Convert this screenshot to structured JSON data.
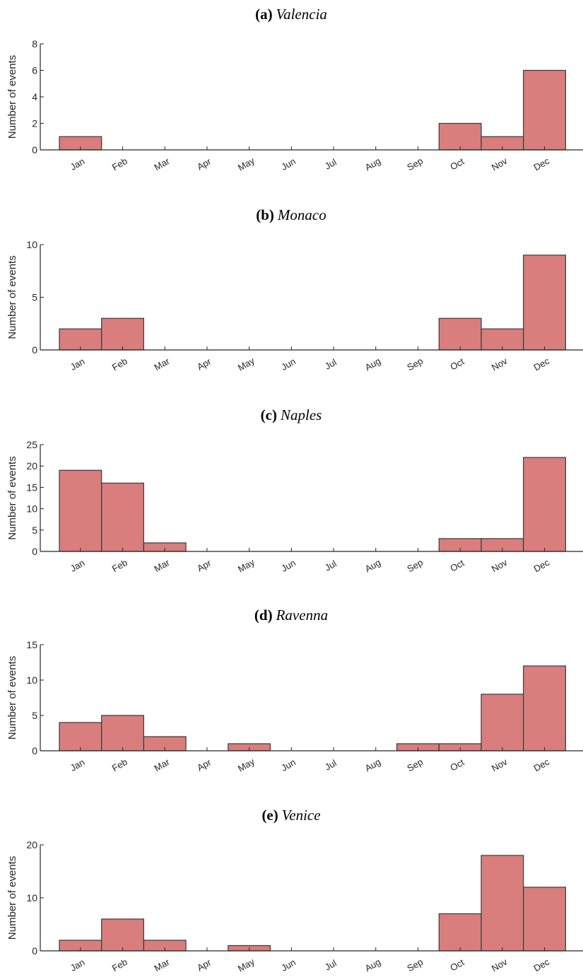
{
  "chart_data": [
    {
      "type": "bar",
      "title_letter": "(a)",
      "title_city": "Valencia",
      "ylabel": "Number of events",
      "categories": [
        "Jan",
        "Feb",
        "Mar",
        "Apr",
        "May",
        "Jun",
        "Jul",
        "Aug",
        "Sep",
        "Oct",
        "Nov",
        "Dec"
      ],
      "values": [
        1,
        0,
        0,
        0,
        0,
        0,
        0,
        0,
        0,
        2,
        1,
        6
      ],
      "ylim": [
        0,
        8
      ],
      "yticks": [
        0,
        2,
        4,
        6,
        8
      ],
      "bar_color": "#d97d7d"
    },
    {
      "type": "bar",
      "title_letter": "(b)",
      "title_city": "Monaco",
      "ylabel": "Number of events",
      "categories": [
        "Jan",
        "Feb",
        "Mar",
        "Apr",
        "May",
        "Jun",
        "Jul",
        "Aug",
        "Sep",
        "Oct",
        "Nov",
        "Dec"
      ],
      "values": [
        2,
        3,
        0,
        0,
        0,
        0,
        0,
        0,
        0,
        3,
        2,
        9
      ],
      "ylim": [
        0,
        10
      ],
      "yticks": [
        0,
        5,
        10
      ],
      "bar_color": "#d97d7d"
    },
    {
      "type": "bar",
      "title_letter": "(c)",
      "title_city": "Naples",
      "ylabel": "Number of events",
      "categories": [
        "Jan",
        "Feb",
        "Mar",
        "Apr",
        "May",
        "Jun",
        "Jul",
        "Aug",
        "Sep",
        "Oct",
        "Nov",
        "Dec"
      ],
      "values": [
        19,
        16,
        2,
        0,
        0,
        0,
        0,
        0,
        0,
        3,
        3,
        22
      ],
      "ylim": [
        0,
        25
      ],
      "yticks": [
        0,
        5,
        10,
        15,
        20,
        25
      ],
      "bar_color": "#d97d7d"
    },
    {
      "type": "bar",
      "title_letter": "(d)",
      "title_city": "Ravenna",
      "ylabel": "Number of events",
      "categories": [
        "Jan",
        "Feb",
        "Mar",
        "Apr",
        "May",
        "Jun",
        "Jul",
        "Aug",
        "Sep",
        "Oct",
        "Nov",
        "Dec"
      ],
      "values": [
        4,
        5,
        2,
        0,
        1,
        0,
        0,
        0,
        1,
        1,
        8,
        12
      ],
      "ylim": [
        0,
        15
      ],
      "yticks": [
        0,
        5,
        10,
        15
      ],
      "bar_color": "#d97d7d"
    },
    {
      "type": "bar",
      "title_letter": "(e)",
      "title_city": "Venice",
      "ylabel": "Number of events",
      "categories": [
        "Jan",
        "Feb",
        "Mar",
        "Apr",
        "May",
        "Jun",
        "Jul",
        "Aug",
        "Sep",
        "Oct",
        "Nov",
        "Dec"
      ],
      "values": [
        2,
        6,
        2,
        0,
        1,
        0,
        0,
        0,
        0,
        7,
        18,
        12
      ],
      "ylim": [
        0,
        20
      ],
      "yticks": [
        0,
        10,
        20
      ],
      "bar_color": "#d97d7d"
    }
  ]
}
